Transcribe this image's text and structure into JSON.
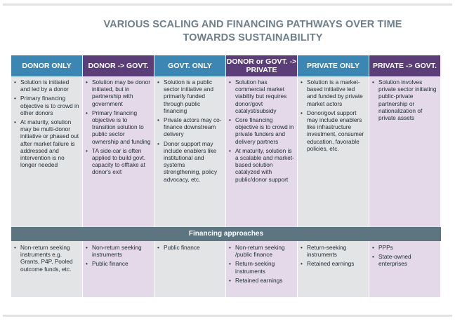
{
  "title": "VARIOUS SCALING AND FINANCING PATHWAYS OVER TIME TOWARDS SUSTAINABILITY",
  "columns": [
    {
      "header": "DONOR ONLY",
      "items": [
        "Solution is initiated and led by a donor",
        "Primary financing objective is to crowd in other donors",
        "At maturity, solution may be multi-donor initiative or phased out after market failure is addressed and intervention is no longer needed"
      ],
      "financing": [
        "Non-return seeking instruments  e.g. Grants, P4P, Pooled outcome funds, etc."
      ]
    },
    {
      "header": "DONOR -> GOVT.",
      "items": [
        "Solution may be donor initiated, but in partnership with government",
        "Primary financing objective is to transition solution to public sector ownership and funding",
        "TA side-car is often applied to build govt. capacity to offtake at donor's exit"
      ],
      "financing": [
        "Non-return seeking instruments",
        "Public finance"
      ]
    },
    {
      "header": "GOVT. ONLY",
      "items": [
        "Solution is a public sector initiative and primarily funded through public financing",
        "Private actors may co-finance downstream delivery",
        "Donor support may include enablers like institutional and systems strengthening, policy advocacy, etc."
      ],
      "financing": [
        "Public finance"
      ]
    },
    {
      "header": "DONOR or GOVT. -> PRIVATE",
      "items": [
        "Solution has commercial market viability but requires donor/govt catalyst/subsidy",
        "Core financing objective is to crowd in private funders and delivery partners",
        "At maturity, solution is a scalable and market-based solution catalyzed with public/donor support"
      ],
      "financing": [
        "Non-return seeking /public finance",
        "Return-seeking instruments",
        "Retained earnings"
      ]
    },
    {
      "header": "PRIVATE ONLY",
      "items": [
        "Solution is a market-based initiative led and funded by private market actors",
        "Donor/govt support may include enablers like infrastructure investment, consumer education, favorable policies, etc."
      ],
      "financing": [
        "Return-seeking instruments",
        "Retained earnings"
      ]
    },
    {
      "header": "PRIVATE -> GOVT.",
      "items": [
        "Solution involves private sector initiating public-private partnership or nationalization of private assets"
      ],
      "financing": [
        "PPPs",
        "State-owned enterprises"
      ]
    }
  ],
  "band_label": "Financing approaches",
  "colors": {
    "blue_header": "#3b86b2",
    "purple_header": "#5b3d77",
    "grey_panel": "#e3e4e6",
    "purple_panel": "#e3d9e8",
    "band": "#5d7580",
    "title": "#6e7e8a"
  }
}
